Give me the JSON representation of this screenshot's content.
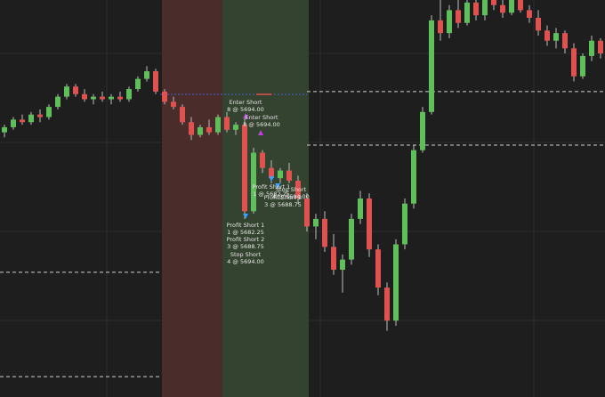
{
  "chart_data": {
    "type": "candlestick",
    "ylim": [
      5664,
      5703
    ],
    "open": [
      5690.0,
      5690.5,
      5691.25,
      5691.0,
      5691.75,
      5691.5,
      5692.5,
      5693.5,
      5694.5,
      5693.75,
      5693.25,
      5693.5,
      5693.25,
      5693.5,
      5693.25,
      5694.25,
      5695.25,
      5696.0,
      5694.0,
      5693.0,
      5692.5,
      5691.0,
      5689.75,
      5690.5,
      5690.0,
      5691.5,
      5690.25,
      5690.75,
      5682.25,
      5688.0,
      5686.5,
      5685.5,
      5686.25,
      5685.25,
      5683.5,
      5680.75,
      5681.5,
      5678.75,
      5676.5,
      5677.5,
      5681.5,
      5683.5,
      5678.5,
      5674.75,
      5671.5,
      5679.0,
      5683.0,
      5688.25,
      5692.0,
      5701.0,
      5699.75,
      5702.0,
      5700.75,
      5702.75,
      5701.5,
      5703.0,
      5702.5,
      5701.75,
      5703.0,
      5702.0,
      5701.25,
      5700.0,
      5699.0,
      5699.75,
      5698.25,
      5695.5,
      5697.5,
      5699.0
    ],
    "high": [
      5690.75,
      5691.5,
      5691.75,
      5692.0,
      5692.25,
      5692.75,
      5693.75,
      5694.75,
      5694.75,
      5694.25,
      5693.75,
      5694.0,
      5693.75,
      5694.0,
      5694.5,
      5695.5,
      5696.5,
      5696.25,
      5694.25,
      5693.5,
      5692.75,
      5691.5,
      5690.75,
      5691.25,
      5691.75,
      5692.0,
      5691.0,
      5691.5,
      5688.5,
      5688.25,
      5687.25,
      5686.5,
      5687.0,
      5685.75,
      5684.0,
      5682.0,
      5682.25,
      5680.0,
      5678.0,
      5682.0,
      5684.25,
      5684.0,
      5679.0,
      5675.25,
      5679.5,
      5683.5,
      5688.75,
      5692.5,
      5701.5,
      5703.5,
      5702.5,
      5703.5,
      5703.25,
      5703.5,
      5703.5,
      5703.75,
      5703.25,
      5703.5,
      5703.5,
      5702.5,
      5702.0,
      5700.5,
      5700.25,
      5700.0,
      5698.75,
      5697.75,
      5699.5,
      5699.25
    ],
    "low": [
      5689.5,
      5690.25,
      5690.75,
      5690.75,
      5691.0,
      5691.25,
      5692.25,
      5693.25,
      5693.5,
      5693.0,
      5692.75,
      5693.0,
      5692.75,
      5693.0,
      5693.0,
      5694.0,
      5695.0,
      5693.75,
      5692.75,
      5692.25,
      5690.75,
      5689.25,
      5689.5,
      5689.75,
      5689.75,
      5690.0,
      5689.75,
      5681.5,
      5682.0,
      5686.0,
      5685.0,
      5685.0,
      5685.0,
      5683.0,
      5680.25,
      5679.5,
      5678.25,
      5676.0,
      5674.25,
      5677.0,
      5681.0,
      5677.75,
      5674.0,
      5670.5,
      5671.0,
      5678.5,
      5682.5,
      5688.0,
      5691.75,
      5699.0,
      5699.25,
      5700.25,
      5700.5,
      5701.0,
      5701.0,
      5702.0,
      5701.25,
      5701.5,
      5701.75,
      5700.75,
      5699.5,
      5698.5,
      5698.25,
      5697.75,
      5695.0,
      5695.25,
      5697.0,
      5697.25
    ],
    "close": [
      5690.5,
      5691.25,
      5691.0,
      5691.75,
      5691.5,
      5692.5,
      5693.5,
      5694.5,
      5693.75,
      5693.25,
      5693.5,
      5693.25,
      5693.5,
      5693.25,
      5694.25,
      5695.25,
      5696.0,
      5694.0,
      5693.0,
      5692.5,
      5691.0,
      5689.75,
      5690.5,
      5690.0,
      5691.5,
      5690.25,
      5690.75,
      5682.25,
      5688.0,
      5686.5,
      5685.5,
      5686.25,
      5685.25,
      5683.5,
      5680.75,
      5681.5,
      5678.75,
      5676.5,
      5677.5,
      5681.5,
      5683.5,
      5678.5,
      5674.75,
      5671.5,
      5679.0,
      5683.0,
      5688.25,
      5692.0,
      5701.0,
      5699.75,
      5702.0,
      5700.75,
      5702.75,
      5701.5,
      5703.0,
      5702.5,
      5701.75,
      5703.0,
      5702.0,
      5701.25,
      5700.0,
      5699.0,
      5699.75,
      5698.25,
      5695.5,
      5697.5,
      5699.0,
      5697.75
    ],
    "levels": [
      5694.0,
      5688.75,
      5676.25,
      5666.0
    ],
    "annotations": [
      [
        "Enter Short",
        "8 @ 5694.00"
      ],
      [
        "Enter Short",
        "8 @ 5694.00"
      ],
      [
        "Profit Short 1",
        "1 @ 5682.25"
      ],
      [
        "Profit Short 2",
        "3 @ 5688.75"
      ],
      [
        "Stop Short",
        "4 @ 5694.00"
      ],
      [
        "Profit Short 1",
        "1 @ 5682.25"
      ],
      [
        "Stop Short",
        "4 @ 5694.00"
      ],
      [
        "Profit Short 2",
        "3 @ 5688.75"
      ]
    ]
  }
}
